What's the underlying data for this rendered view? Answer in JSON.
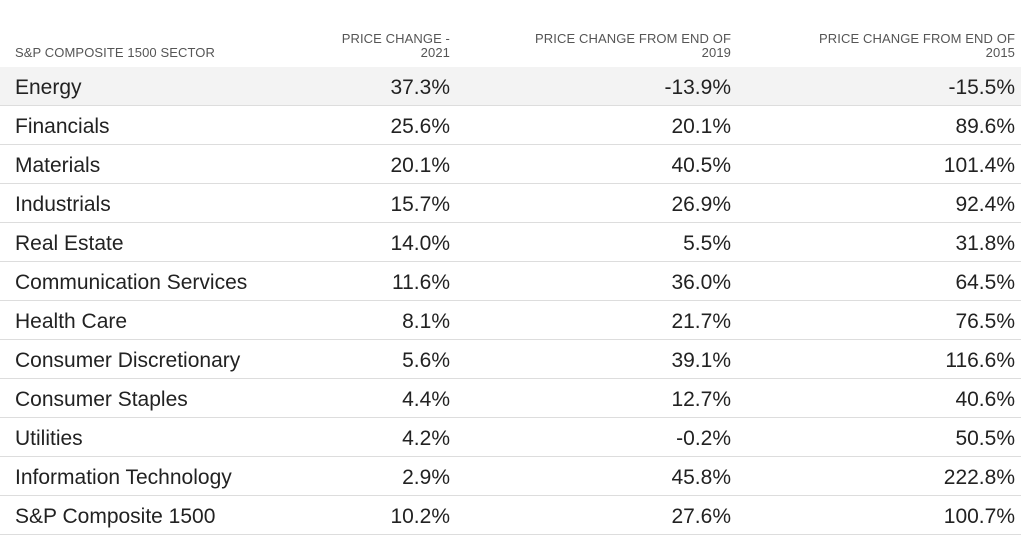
{
  "chart_data": {
    "type": "table",
    "columns": [
      {
        "lines": [
          "S&P COMPOSITE 1500 SECTOR"
        ]
      },
      {
        "lines": [
          "PRICE CHANGE -",
          "2021"
        ]
      },
      {
        "lines": [
          "PRICE CHANGE FROM END OF",
          "2019"
        ]
      },
      {
        "lines": [
          "PRICE CHANGE FROM END OF",
          "2015"
        ]
      }
    ],
    "rows": [
      {
        "sector": "Energy",
        "values": [
          "37.3%",
          "-13.9%",
          "-15.5%"
        ]
      },
      {
        "sector": "Financials",
        "values": [
          "25.6%",
          "20.1%",
          "89.6%"
        ]
      },
      {
        "sector": "Materials",
        "values": [
          "20.1%",
          "40.5%",
          "101.4%"
        ]
      },
      {
        "sector": "Industrials",
        "values": [
          "15.7%",
          "26.9%",
          "92.4%"
        ]
      },
      {
        "sector": "Real Estate",
        "values": [
          "14.0%",
          "5.5%",
          "31.8%"
        ]
      },
      {
        "sector": "Communication Services",
        "values": [
          "11.6%",
          "36.0%",
          "64.5%"
        ]
      },
      {
        "sector": "Health Care",
        "values": [
          "8.1%",
          "21.7%",
          "76.5%"
        ]
      },
      {
        "sector": "Consumer Discretionary",
        "values": [
          "5.6%",
          "39.1%",
          "116.6%"
        ]
      },
      {
        "sector": "Consumer Staples",
        "values": [
          "4.4%",
          "12.7%",
          "40.6%"
        ]
      },
      {
        "sector": "Utilities",
        "values": [
          "4.2%",
          "-0.2%",
          "50.5%"
        ]
      },
      {
        "sector": "Information Technology",
        "values": [
          "2.9%",
          "45.8%",
          "222.8%"
        ]
      },
      {
        "sector": "S&P Composite 1500",
        "values": [
          "10.2%",
          "27.6%",
          "100.7%"
        ]
      }
    ]
  },
  "colors": {
    "text": "#222222",
    "header_text": "#555555",
    "row_divider": "#dddddd",
    "highlight_row": "#f3f3f3"
  }
}
